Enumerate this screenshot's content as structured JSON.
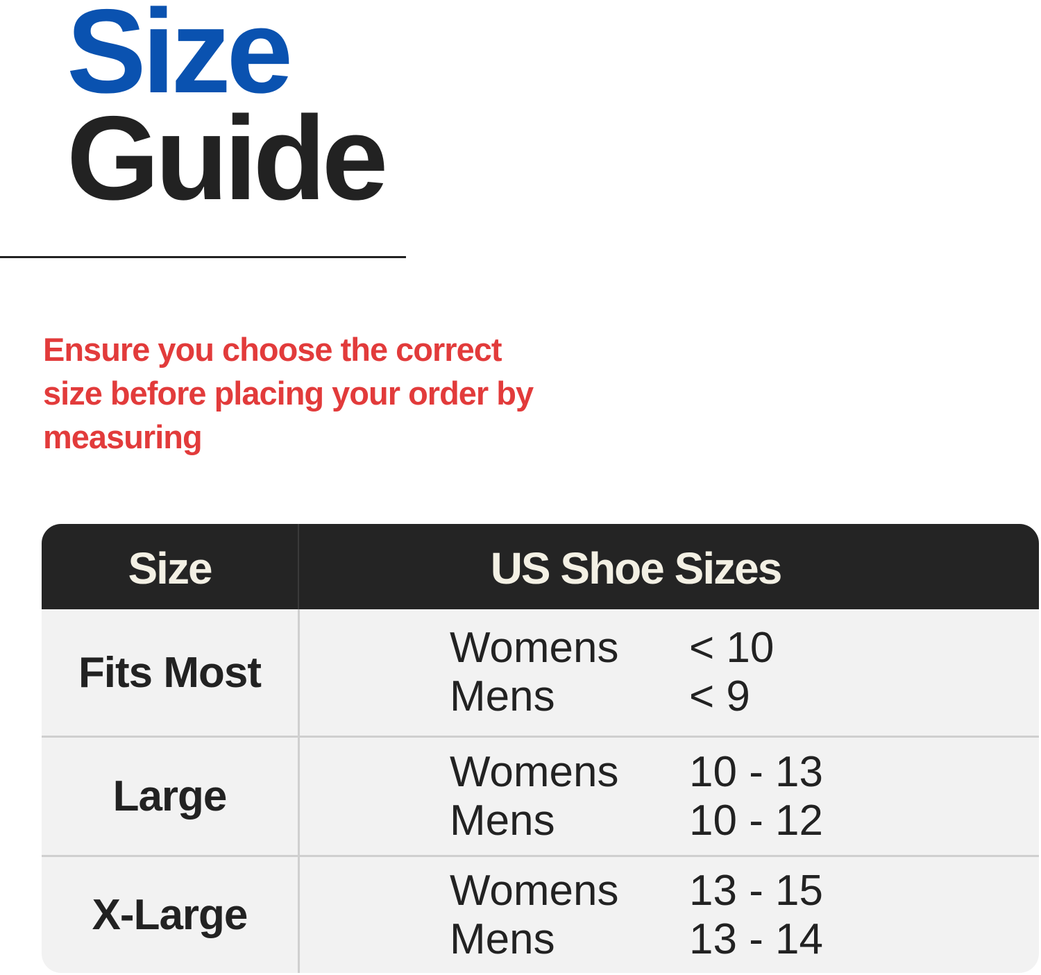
{
  "title": {
    "line1": "Size",
    "line2": "Guide"
  },
  "note": "Ensure you choose the correct size before placing your order by measuring",
  "colors": {
    "title_blue": "#0a52b0",
    "note_red": "#e23b3b",
    "header_bg": "#242424",
    "header_text": "#f3f0e4",
    "row_bg": "#f2f2f2"
  },
  "table": {
    "headers": [
      "Size",
      "US Shoe Sizes"
    ],
    "rows": [
      {
        "size": "Fits Most",
        "womens_label": "Womens",
        "womens": "< 10",
        "mens_label": "Mens",
        "mens": "< 9"
      },
      {
        "size": "Large",
        "womens_label": "Womens",
        "womens": "10 - 13",
        "mens_label": "Mens",
        "mens": "10 - 12"
      },
      {
        "size": "X-Large",
        "womens_label": "Womens",
        "womens": "13 - 15",
        "mens_label": "Mens",
        "mens": "13 - 14"
      }
    ]
  }
}
